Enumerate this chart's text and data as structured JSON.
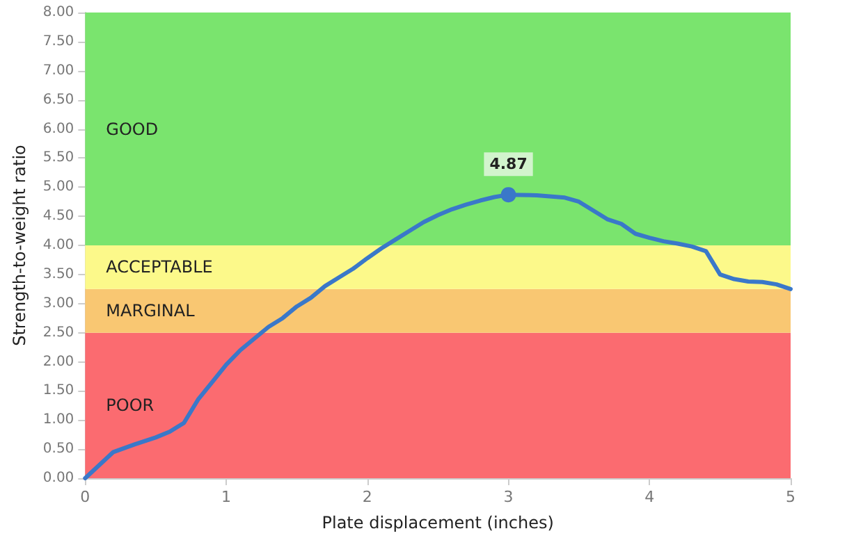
{
  "chart_data": {
    "type": "line",
    "xlabel": "Plate displacement (inches)",
    "ylabel": "Strength-to-weight ratio",
    "x": [
      0,
      0.2,
      0.35,
      0.5,
      0.6,
      0.7,
      0.8,
      0.9,
      1,
      1.1,
      1.2,
      1.3,
      1.4,
      1.5,
      1.6,
      1.7,
      1.8,
      1.9,
      2,
      2.1,
      2.2,
      2.3,
      2.4,
      2.5,
      2.6,
      2.7,
      2.8,
      2.9,
      3,
      3.2,
      3.4,
      3.5,
      3.6,
      3.7,
      3.8,
      3.9,
      4,
      4.1,
      4.2,
      4.3,
      4.4,
      4.5,
      4.6,
      4.7,
      4.8,
      4.9,
      5
    ],
    "series": [
      {
        "color": "#3a78c9",
        "values": [
          0,
          0.45,
          0.58,
          0.7,
          0.8,
          0.95,
          1.35,
          1.65,
          1.95,
          2.2,
          2.4,
          2.6,
          2.75,
          2.95,
          3.1,
          3.3,
          3.45,
          3.6,
          3.78,
          3.95,
          4.1,
          4.25,
          4.4,
          4.52,
          4.62,
          4.7,
          4.77,
          4.83,
          4.87,
          4.86,
          4.82,
          4.75,
          4.6,
          4.45,
          4.37,
          4.2,
          4.13,
          4.07,
          4.03,
          3.98,
          3.9,
          3.5,
          3.42,
          3.38,
          3.37,
          3.33,
          3.25
        ],
        "value_labels": [
          null,
          null,
          null,
          null,
          null,
          null,
          null,
          null,
          null,
          null,
          null,
          null,
          null,
          null,
          null,
          null,
          null,
          null,
          null,
          null,
          null,
          null,
          null,
          null,
          null,
          null,
          null,
          null,
          "4.87",
          null,
          null,
          null,
          null,
          null,
          null,
          null,
          null,
          null,
          null,
          null,
          null,
          null,
          null,
          null,
          null,
          null,
          null
        ]
      }
    ],
    "bands": [
      {
        "axis": "y",
        "from": 0,
        "to": 2.5,
        "label": "POOR",
        "color": "#fb6b70"
      },
      {
        "axis": "y",
        "from": 2.5,
        "to": 3.25,
        "label": "MARGINAL",
        "color": "#f9c772"
      },
      {
        "axis": "y",
        "from": 3.25,
        "to": 4,
        "label": "ACCEPTABLE",
        "color": "#fcf98a"
      },
      {
        "axis": "y",
        "from": 4,
        "to": 8,
        "label": "GOOD",
        "color": "#7ae46e"
      }
    ],
    "xlim": [
      0,
      5
    ],
    "xticks": [
      0,
      1,
      2,
      3,
      4,
      5
    ],
    "ylim": [
      0,
      8
    ],
    "yticks": [
      {
        "value": 0,
        "label": "0.00"
      },
      {
        "value": 0.5,
        "label": "0.50"
      },
      {
        "value": 1,
        "label": "1.00"
      },
      {
        "value": 1.5,
        "label": "1.50"
      },
      {
        "value": 2,
        "label": "2.00"
      },
      {
        "value": 2.5,
        "label": "2.50"
      },
      {
        "value": 3,
        "label": "3.00"
      },
      {
        "value": 3.5,
        "label": "3.50"
      },
      {
        "value": 4,
        "label": "4.00"
      },
      {
        "value": 4.5,
        "label": "4.50"
      },
      {
        "value": 5,
        "label": "5.00"
      },
      {
        "value": 5.5,
        "label": "5.50"
      },
      {
        "value": 6,
        "label": "6.00"
      },
      {
        "value": 6.5,
        "label": "6.50"
      },
      {
        "value": 7,
        "label": "7.00"
      },
      {
        "value": 7.5,
        "label": "7.50"
      },
      {
        "value": 8,
        "label": "8.00"
      }
    ],
    "line_style": "solid"
  }
}
